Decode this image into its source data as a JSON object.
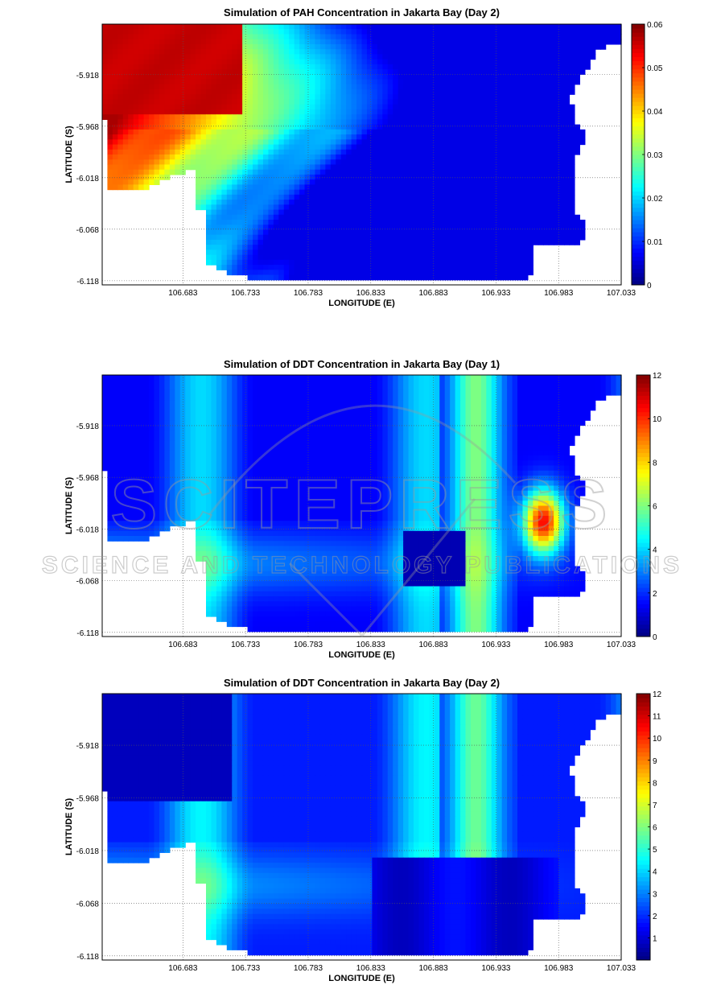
{
  "chart_data": [
    {
      "type": "heatmap",
      "title": "Simulation of PAH Concentration in Jakarta Bay (Day 2)",
      "xlabel": "LONGITUDE (E)",
      "ylabel": "LATITUDE (S)",
      "xticks": [
        "106.683",
        "106.733",
        "106.783",
        "106.833",
        "106.883",
        "106.933",
        "106.983",
        "107.033"
      ],
      "xtick_values": [
        106.683,
        106.733,
        106.783,
        106.833,
        106.883,
        106.933,
        106.983,
        107.033
      ],
      "yticks": [
        "-5.918",
        "-5.968",
        "-6.018",
        "-6.068",
        "-6.118"
      ],
      "ytick_values": [
        -5.918,
        -5.968,
        -6.018,
        -6.068,
        -6.118
      ],
      "xlim": [
        106.6185,
        107.033
      ],
      "ylim": [
        -6.122,
        -5.869
      ],
      "colorbar": {
        "min": 0,
        "max": 0.06,
        "ticks": [
          "0",
          "0.01",
          "0.02",
          "0.03",
          "0.04",
          "0.05",
          "0.06"
        ],
        "tick_values": [
          0,
          0.01,
          0.02,
          0.03,
          0.04,
          0.05,
          0.06
        ],
        "colormap": "jet"
      },
      "grid": true,
      "variant": "pah"
    },
    {
      "type": "heatmap",
      "title": "Simulation of DDT Concentration in Jakarta Bay (Day 1)",
      "xlabel": "LONGITUDE (E)",
      "ylabel": "LATITUDE (S)",
      "xticks": [
        "106.683",
        "106.733",
        "106.783",
        "106.833",
        "106.883",
        "106.933",
        "106.983",
        "107.033"
      ],
      "xtick_values": [
        106.683,
        106.733,
        106.783,
        106.833,
        106.883,
        106.933,
        106.983,
        107.033
      ],
      "yticks": [
        "-5.918",
        "-5.968",
        "-6.018",
        "-6.068",
        "-6.118"
      ],
      "ytick_values": [
        -5.918,
        -5.968,
        -6.018,
        -6.068,
        -6.118
      ],
      "xlim": [
        106.6185,
        107.033
      ],
      "ylim": [
        -6.122,
        -5.869
      ],
      "colorbar": {
        "min": 0,
        "max": 12,
        "ticks": [
          "0",
          "2",
          "4",
          "6",
          "8",
          "10",
          "12"
        ],
        "tick_values": [
          0,
          2,
          4,
          6,
          8,
          10,
          12
        ],
        "colormap": "jet"
      },
      "grid": true,
      "variant": "ddt1"
    },
    {
      "type": "heatmap",
      "title": "Simulation of DDT Concentration in Jakarta Bay (Day 2)",
      "xlabel": "LONGITUDE (E)",
      "ylabel": "LATITUDE (S)",
      "xticks": [
        "106.683",
        "106.733",
        "106.783",
        "106.833",
        "106.883",
        "106.933",
        "106.983",
        "107.033"
      ],
      "xtick_values": [
        106.683,
        106.733,
        106.783,
        106.833,
        106.883,
        106.933,
        106.983,
        107.033
      ],
      "yticks": [
        "-5.918",
        "-5.968",
        "-6.018",
        "-6.068",
        "-6.118"
      ],
      "ytick_values": [
        -5.918,
        -5.968,
        -6.018,
        -6.068,
        -6.118
      ],
      "xlim": [
        106.6185,
        107.033
      ],
      "ylim": [
        -6.122,
        -5.869
      ],
      "colorbar": {
        "min": 0,
        "max": 12,
        "ticks": [
          "1",
          "2",
          "3",
          "4",
          "5",
          "6",
          "7",
          "8",
          "9",
          "10",
          "11",
          "12"
        ],
        "tick_values": [
          1,
          2,
          3,
          4,
          5,
          6,
          7,
          8,
          9,
          10,
          11,
          12
        ],
        "colormap": "jet"
      },
      "grid": true,
      "variant": "ddt2"
    }
  ],
  "watermark": {
    "line1": "SCITEPRESS",
    "line2": "SCIENCE AND TECHNOLOGY PUBLICATIONS"
  }
}
